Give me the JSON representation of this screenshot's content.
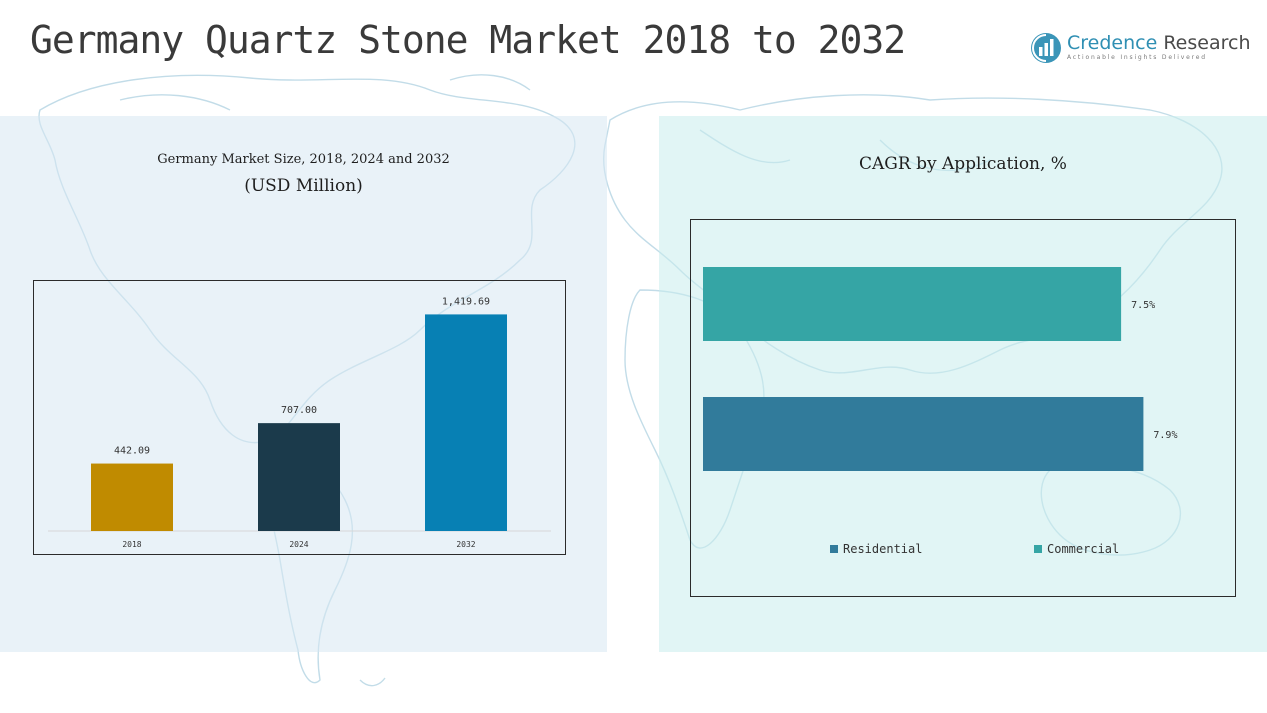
{
  "page": {
    "title": "Germany Quartz Stone Market 2018 to 2032"
  },
  "logo": {
    "name_part1": "Credence",
    "name_part2": "Research",
    "tagline": "Actionable Insights Delivered"
  },
  "colors": {
    "bar_2018": "#c08b00",
    "bar_2024": "#1b3a4b",
    "bar_2032": "#0780b4",
    "residential": "#317b9b",
    "commercial": "#35a5a5"
  },
  "chart_data": [
    {
      "type": "bar",
      "title": "Germany Market Size, 2018, 2024 and 2032",
      "subtitle": "(USD Million)",
      "categories": [
        "2018",
        "2024",
        "2032"
      ],
      "values": [
        442.09,
        707.0,
        1419.69
      ],
      "value_labels": [
        "442.09",
        "707.00",
        "1,419.69"
      ],
      "ylim": [
        0,
        1560
      ],
      "grid": false,
      "legend": "none"
    },
    {
      "type": "bar",
      "orientation": "horizontal",
      "title": "CAGR by Application, %",
      "categories": [
        "Commercial",
        "Residential"
      ],
      "values": [
        7.5,
        7.9
      ],
      "value_labels": [
        "7.5%",
        "7.9%"
      ],
      "xlim": [
        0,
        8.7
      ],
      "grid": false,
      "legend": "bottom",
      "legend_entries": [
        "Residential",
        "Commercial"
      ]
    }
  ]
}
